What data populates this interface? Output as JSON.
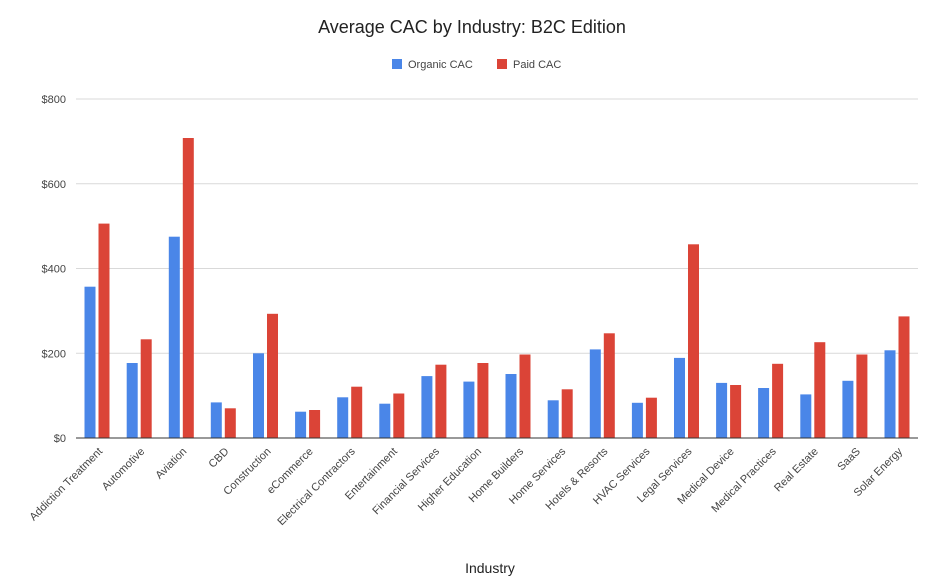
{
  "chart_data": {
    "type": "bar",
    "title": "Average CAC by Industry: B2C Edition",
    "xlabel": "Industry",
    "ylabel": "",
    "ylim": [
      0,
      800
    ],
    "yticks": [
      0,
      200,
      400,
      600,
      800
    ],
    "ytick_labels": [
      "$0",
      "$200",
      "$400",
      "$600",
      "$800"
    ],
    "grid": true,
    "legend": "top-center",
    "categories": [
      "Addiction Treatment",
      "Automotive",
      "Aviation",
      "CBD",
      "Construction",
      "eCommerce",
      "Electrical Contractors",
      "Entertainment",
      "Financial Services",
      "Higher Education",
      "Home Builders",
      "Home Services",
      "Hotels & Resorts",
      "HVAC Services",
      "Legal Services",
      "Medical Device",
      "Medical Practices",
      "Real Estate",
      "SaaS",
      "Solar Energy"
    ],
    "series": [
      {
        "name": "Organic CAC",
        "color": "#4a86e8",
        "values": [
          357,
          177,
          475,
          84,
          200,
          62,
          96,
          81,
          146,
          133,
          151,
          89,
          209,
          83,
          189,
          130,
          118,
          103,
          135,
          207
        ]
      },
      {
        "name": "Paid CAC",
        "color": "#db4437",
        "values": [
          506,
          233,
          708,
          70,
          293,
          66,
          121,
          105,
          173,
          177,
          197,
          115,
          247,
          95,
          457,
          125,
          175,
          226,
          197,
          287
        ]
      }
    ]
  }
}
